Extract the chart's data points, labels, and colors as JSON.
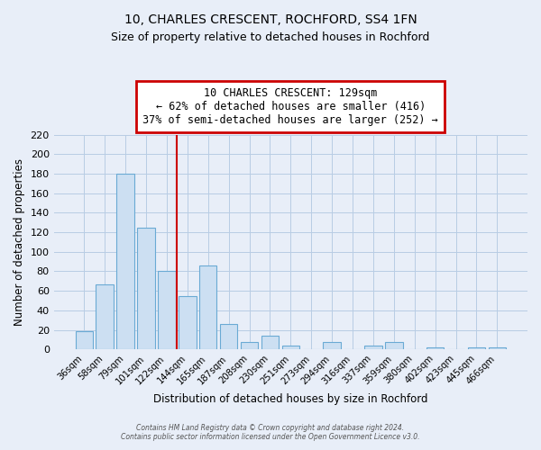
{
  "title": "10, CHARLES CRESCENT, ROCHFORD, SS4 1FN",
  "subtitle": "Size of property relative to detached houses in Rochford",
  "xlabel": "Distribution of detached houses by size in Rochford",
  "ylabel": "Number of detached properties",
  "bar_labels": [
    "36sqm",
    "58sqm",
    "79sqm",
    "101sqm",
    "122sqm",
    "144sqm",
    "165sqm",
    "187sqm",
    "208sqm",
    "230sqm",
    "251sqm",
    "273sqm",
    "294sqm",
    "316sqm",
    "337sqm",
    "359sqm",
    "380sqm",
    "402sqm",
    "423sqm",
    "445sqm",
    "466sqm"
  ],
  "bar_heights": [
    19,
    67,
    180,
    125,
    80,
    55,
    86,
    26,
    8,
    14,
    4,
    0,
    8,
    0,
    4,
    8,
    0,
    2,
    0,
    2,
    2
  ],
  "bar_color": "#ccdff2",
  "bar_edge_color": "#6aaad4",
  "ylim": [
    0,
    220
  ],
  "yticks": [
    0,
    20,
    40,
    60,
    80,
    100,
    120,
    140,
    160,
    180,
    200,
    220
  ],
  "vline_color": "#cc0000",
  "annotation_title": "10 CHARLES CRESCENT: 129sqm",
  "annotation_line1": "← 62% of detached houses are smaller (416)",
  "annotation_line2": "37% of semi-detached houses are larger (252) →",
  "footer1": "Contains HM Land Registry data © Crown copyright and database right 2024.",
  "footer2": "Contains public sector information licensed under the Open Government Licence v3.0.",
  "background_color": "#e8eef8",
  "plot_bg_color": "#e8eef8",
  "grid_color": "#b8cce4"
}
